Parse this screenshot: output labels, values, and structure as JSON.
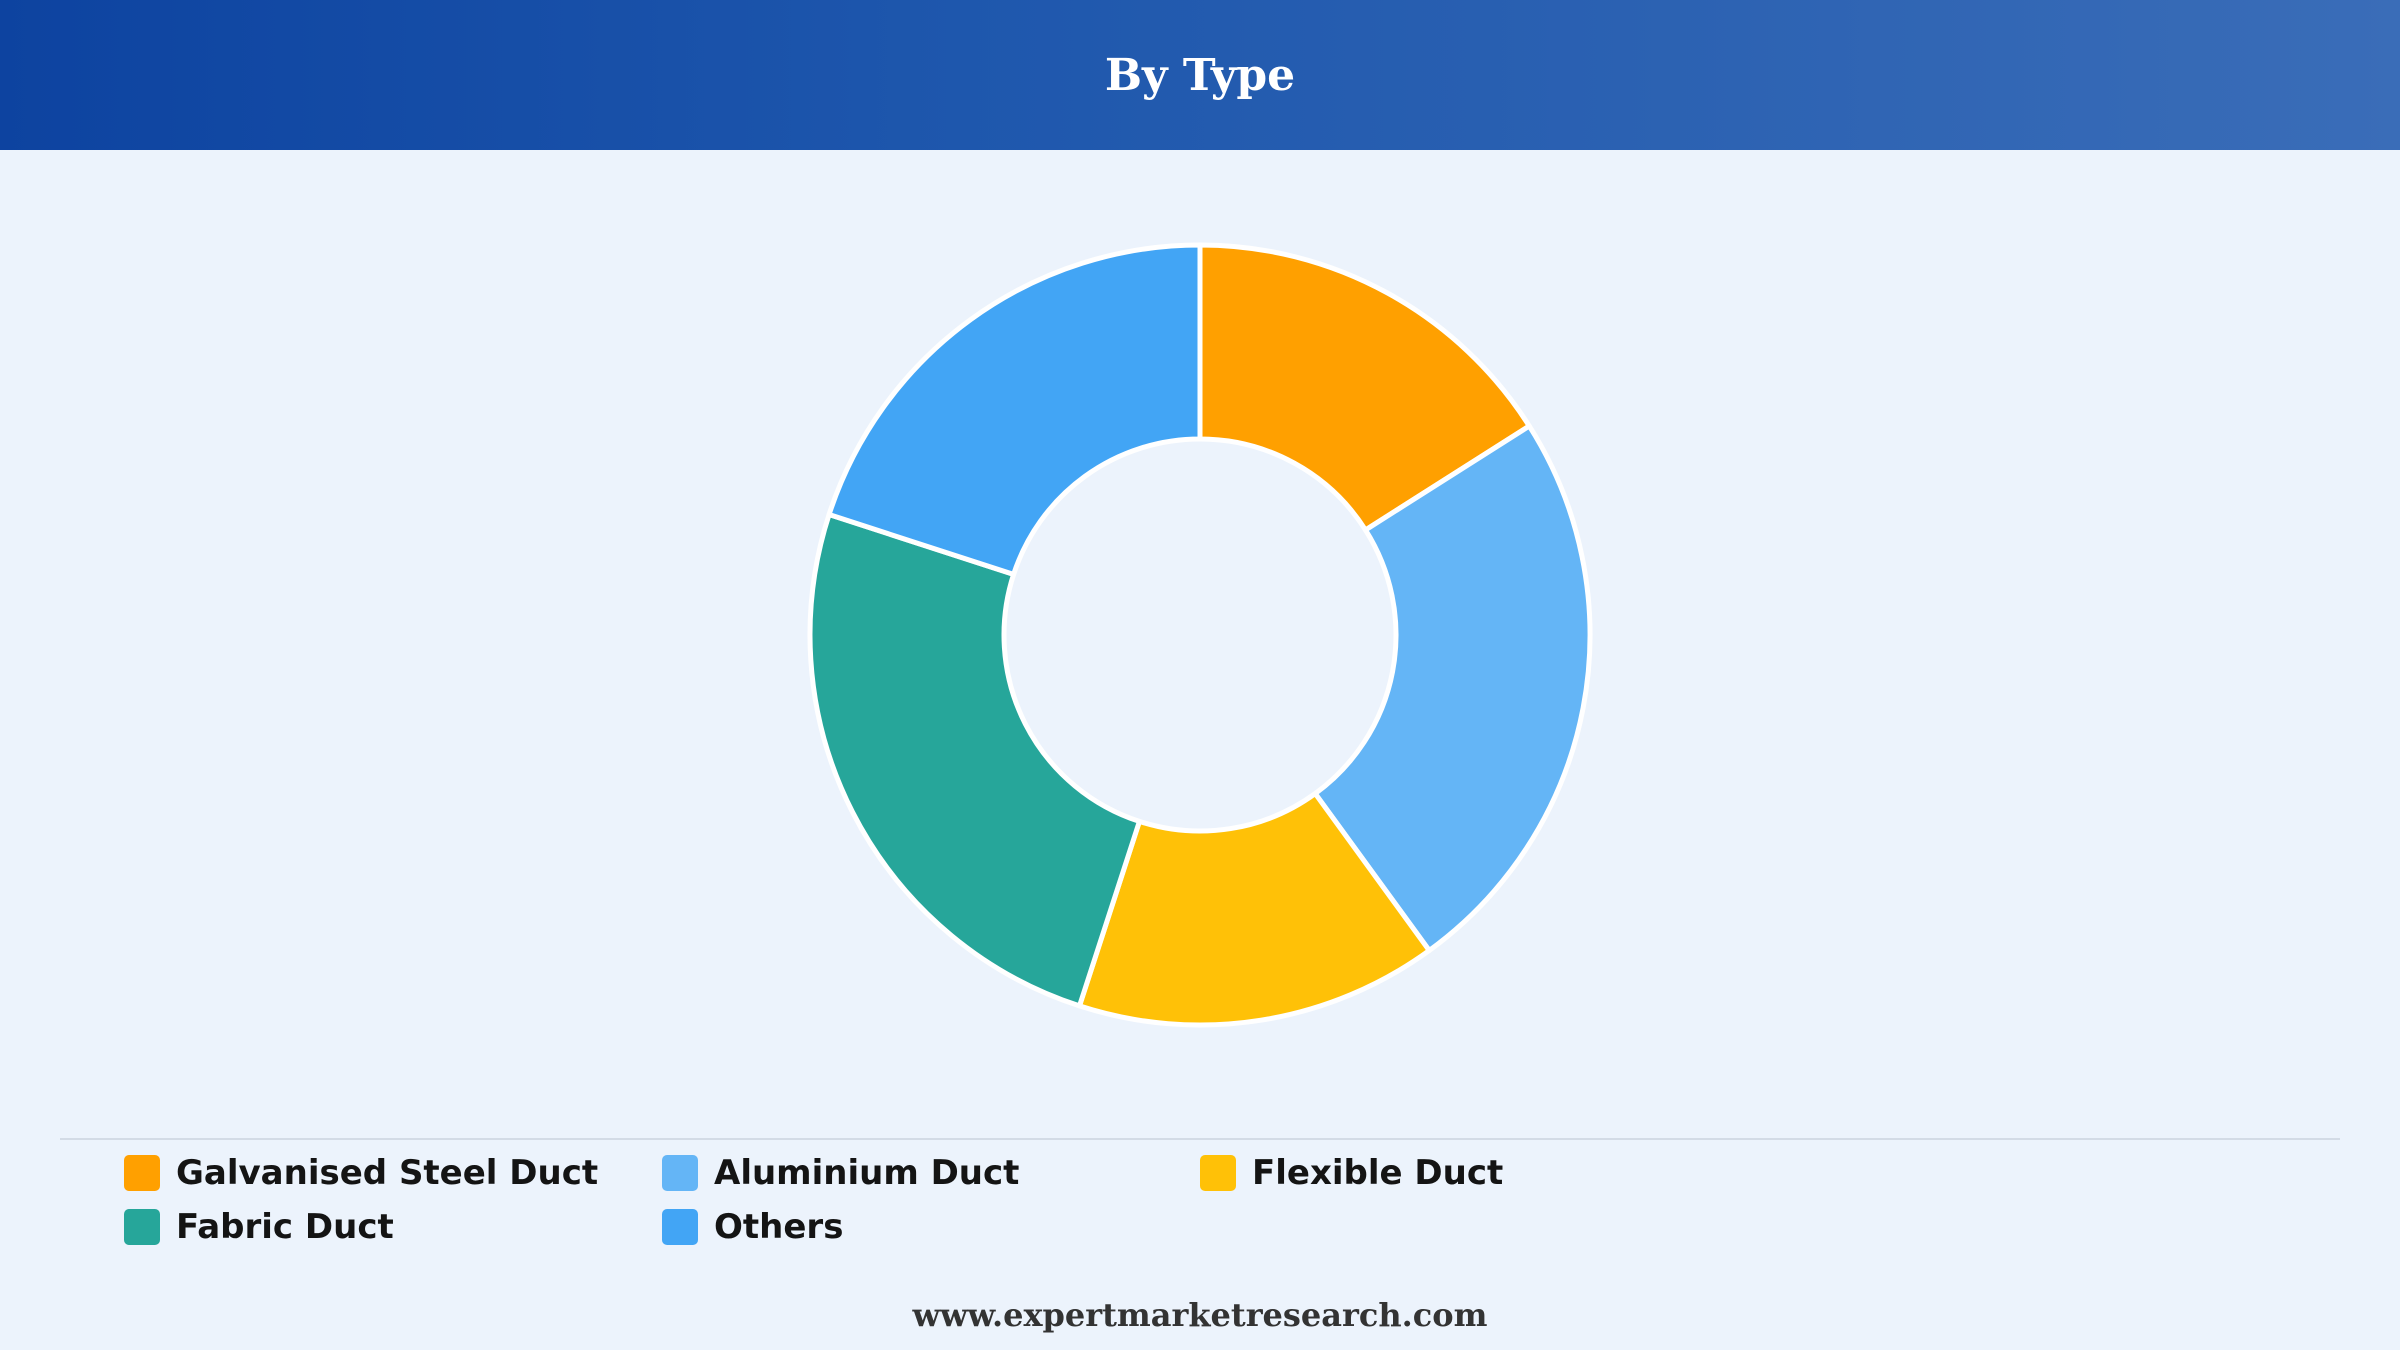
{
  "header": {
    "title": "By Type"
  },
  "chart_data": {
    "type": "pie",
    "style": "donut",
    "title": "By Type",
    "categories": [
      "Galvanised Steel Duct",
      "Aluminium Duct",
      "Flexible Duct",
      "Fabric Duct",
      "Others"
    ],
    "values": [
      16,
      24,
      15,
      25,
      20
    ],
    "colors": [
      "#ffa000",
      "#64b5f6",
      "#ffc107",
      "#26a69a",
      "#42a5f5"
    ],
    "start_angle_deg": 0,
    "direction": "clockwise",
    "legend_position": "bottom"
  },
  "legend": {
    "items": [
      {
        "label": "Galvanised Steel Duct",
        "color": "#ffa000"
      },
      {
        "label": "Aluminium Duct",
        "color": "#64b5f6"
      },
      {
        "label": "Flexible Duct",
        "color": "#ffc107"
      },
      {
        "label": "Fabric Duct",
        "color": "#26a69a"
      },
      {
        "label": "Others",
        "color": "#42a5f5"
      }
    ]
  },
  "footer": {
    "website": "www.expertmarketresearch.com"
  }
}
